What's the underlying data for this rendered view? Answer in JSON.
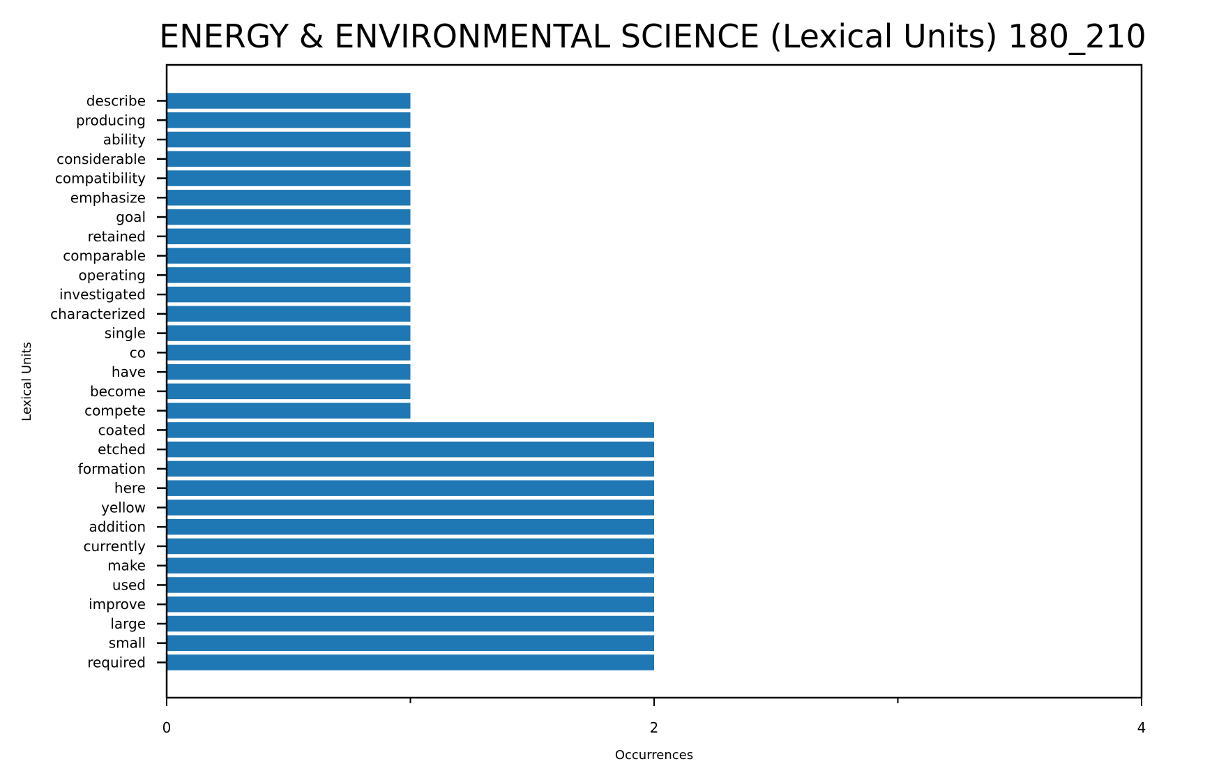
{
  "chart_data": {
    "type": "bar",
    "orientation": "horizontal",
    "title": "ENERGY & ENVIRONMENTAL SCIENCE (Lexical Units) 180_210",
    "xlabel": "Occurrences",
    "ylabel": "Lexical Units",
    "xlim": [
      0,
      4
    ],
    "x_ticks": [
      0,
      1,
      2,
      3,
      4
    ],
    "x_tick_labels": [
      "0",
      "",
      "2",
      "",
      "4"
    ],
    "grid": false,
    "legend": "none",
    "bar_color": "#1f77b4",
    "categories": [
      "describe",
      "producing",
      "ability",
      "considerable",
      "compatibility",
      "emphasize",
      "goal",
      "retained",
      "comparable",
      "operating",
      "investigated",
      "characterized",
      "single",
      "co",
      "have",
      "become",
      "compete",
      "coated",
      "etched",
      "formation",
      "here",
      "yellow",
      "addition",
      "currently",
      "make",
      "used",
      "improve",
      "large",
      "small",
      "required"
    ],
    "values": [
      1,
      1,
      1,
      1,
      1,
      1,
      1,
      1,
      1,
      1,
      1,
      1,
      1,
      1,
      1,
      1,
      1,
      2,
      2,
      2,
      2,
      2,
      2,
      2,
      2,
      2,
      2,
      2,
      2,
      2
    ]
  }
}
